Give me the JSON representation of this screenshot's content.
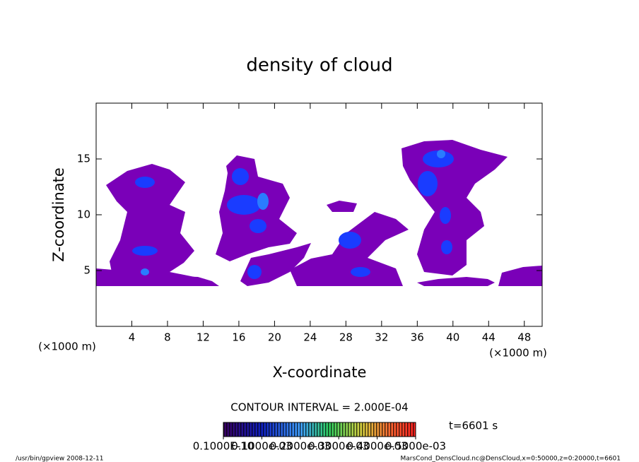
{
  "chart_data": {
    "type": "contour",
    "title": "density of cloud",
    "x_label": "X-coordinate",
    "y_label": "Z-coordinate",
    "x_unit": "(×1000 m)",
    "y_unit": "(×1000 m)",
    "xlim": [
      0,
      50
    ],
    "ylim": [
      0,
      20
    ],
    "xticks": [
      4,
      8,
      12,
      16,
      20,
      24,
      28,
      32,
      36,
      40,
      44,
      48
    ],
    "yticks": [
      5,
      10,
      15
    ],
    "contour_interval": "CONTOUR INTERVAL = 2.000E-04",
    "time": "t=6601 s",
    "clim": [
      0,
      0.0005
    ],
    "colorbar_ticks": [
      {
        "value": 1e-11,
        "label": "0.1000E-10"
      },
      {
        "value": 0.0001,
        "label": "0.1000e-03"
      },
      {
        "value": 0.0002,
        "label": "0.2000e-03"
      },
      {
        "value": 0.0003,
        "label": "0.3000e-03"
      },
      {
        "value": 0.0004,
        "label": "0.4000e-03"
      },
      {
        "value": 0.0005,
        "label": "0.5000e-03"
      }
    ],
    "footer_left": "/usr/bin/gpview   2008-12-11",
    "footer_right": "MarsCond_DensCloud.nc@DensCloud,x=0:50000,z=0:20000,t=6601"
  }
}
